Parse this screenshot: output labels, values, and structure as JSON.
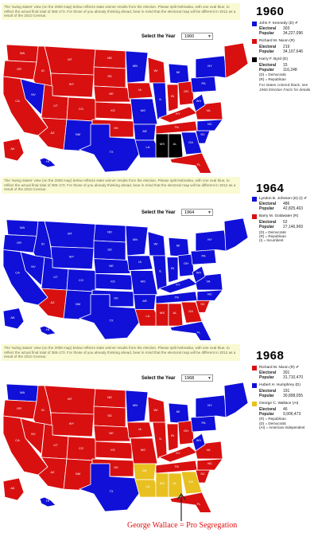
{
  "note_text": "The 'swing states' view (on the 2008 map) below reflects state winner results from the election. Please split Nebraska, with one oval blue, to reflect the actual final total of 365-173. For those of you already thinking ahead, bear in mind that the electoral map will be different in 2012 as a result of the 2010 Census.",
  "select_label": "Select the Year",
  "colors": {
    "dem": "#1010d8",
    "rep": "#d81010",
    "other": "#e8c020",
    "byrd": "#000000",
    "sea": "#ffffff"
  },
  "panels": [
    {
      "year": "1960",
      "select_value": "1960",
      "candidates": [
        {
          "name": "John F. Kennedy (D) ✔",
          "color": "#1010d8",
          "stats": [
            {
              "k": "Electoral",
              "v": "303"
            },
            {
              "k": "Popular",
              "v": "34,227,096"
            }
          ]
        },
        {
          "name": "Richard M. Nixon (R)",
          "color": "#d81010",
          "stats": [
            {
              "k": "Electoral",
              "v": "219"
            },
            {
              "k": "Popular",
              "v": "34,107,646"
            }
          ]
        },
        {
          "name": "Harry F. Byrd (D)",
          "color": "#000000",
          "stats": [
            {
              "k": "Electoral",
              "v": "15"
            },
            {
              "k": "Popular",
              "v": "116,248"
            }
          ]
        }
      ],
      "key": [
        "(D) = Democratic",
        "(R) = Republican"
      ],
      "footnote_pre": "For states colored black, see",
      "footnote_link": "1960 Election Facts",
      "footnote_post": "for details"
    },
    {
      "year": "1964",
      "select_value": "1964",
      "candidates": [
        {
          "name": "Lyndon B. Johnson (D) (I) ✔",
          "color": "#1010d8",
          "stats": [
            {
              "k": "Electoral",
              "v": "486"
            },
            {
              "k": "Popular",
              "v": "42,825,463"
            }
          ]
        },
        {
          "name": "Barry M. Goldwater (R)",
          "color": "#d81010",
          "stats": [
            {
              "k": "Electoral",
              "v": "52"
            },
            {
              "k": "Popular",
              "v": "27,146,969"
            }
          ]
        }
      ],
      "key": [
        "(D) = Democratic",
        "(R) = Republican",
        "(I) = Incumbent"
      ]
    },
    {
      "year": "1968",
      "select_value": "1968",
      "candidates": [
        {
          "name": "Richard M. Nixon (R) ✔",
          "color": "#d81010",
          "stats": [
            {
              "k": "Electoral",
              "v": "301"
            },
            {
              "k": "Popular",
              "v": "31,710,470"
            }
          ]
        },
        {
          "name": "Hubert H. Humphrey (D)",
          "color": "#1010d8",
          "stats": [
            {
              "k": "Electoral",
              "v": "191"
            },
            {
              "k": "Popular",
              "v": "30,898,055"
            }
          ]
        },
        {
          "name": "George C. Wallace (AI)",
          "color": "#e8c020",
          "stats": [
            {
              "k": "Electoral",
              "v": "46"
            },
            {
              "k": "Popular",
              "v": "9,906,473"
            }
          ]
        }
      ],
      "key": [
        "(R) = Republican",
        "(D) = Democratic",
        "(AI) = American Independent"
      ]
    }
  ],
  "caption": "George Wallace = Pro Segregation",
  "states": {
    "WA": "Washington",
    "OR": "Oregon",
    "CA": "California",
    "ID": "Idaho",
    "NV": "Nevada",
    "MT": "Montana",
    "WY": "Wyoming",
    "UT": "Utah",
    "AZ": "Arizona",
    "CO": "Colorado",
    "NM": "New Mexico",
    "ND": "North Dakota",
    "SD": "South Dakota",
    "NE": "Nebraska",
    "KS": "Kansas",
    "OK": "Oklahoma",
    "TX": "Texas",
    "MN": "Minnesota",
    "IA": "Iowa",
    "MO": "Missouri",
    "AR": "Arkansas",
    "LA": "Louisiana",
    "WI": "Wisconsin",
    "IL": "Illinois",
    "MI": "Michigan",
    "IN": "Indiana",
    "OH": "Ohio",
    "KY": "Kentucky",
    "TN": "Tennessee",
    "MS": "Mississippi",
    "AL": "Alabama",
    "GA": "Georgia",
    "FL": "Florida",
    "SC": "South Carolina",
    "NC": "North Carolina",
    "VA": "Virginia",
    "WV": "West Virginia",
    "PA": "Pennsylvania",
    "NY": "New York",
    "NE_REG": "New England",
    "AK": "Alaska",
    "HI": "Hawaii"
  },
  "results": [
    {
      "WA": "rep",
      "OR": "rep",
      "CA": "rep",
      "ID": "rep",
      "NV": "dem",
      "MT": "rep",
      "WY": "rep",
      "UT": "rep",
      "AZ": "rep",
      "CO": "rep",
      "NM": "dem",
      "ND": "rep",
      "SD": "rep",
      "NE": "rep",
      "KS": "rep",
      "OK": "rep",
      "TX": "dem",
      "MN": "dem",
      "IA": "rep",
      "MO": "dem",
      "AR": "dem",
      "LA": "dem",
      "WI": "rep",
      "IL": "dem",
      "MI": "dem",
      "IN": "rep",
      "OH": "rep",
      "KY": "rep",
      "TN": "rep",
      "MS": "byrd",
      "AL": "byrd",
      "GA": "dem",
      "FL": "rep",
      "SC": "dem",
      "NC": "dem",
      "VA": "rep",
      "WV": "dem",
      "PA": "dem",
      "NY": "dem",
      "NE_REG": "rep",
      "AK": "rep",
      "HI": "dem"
    },
    {
      "WA": "dem",
      "OR": "dem",
      "CA": "dem",
      "ID": "dem",
      "NV": "dem",
      "MT": "dem",
      "WY": "dem",
      "UT": "dem",
      "AZ": "rep",
      "CO": "dem",
      "NM": "dem",
      "ND": "dem",
      "SD": "dem",
      "NE": "dem",
      "KS": "dem",
      "OK": "dem",
      "TX": "dem",
      "MN": "dem",
      "IA": "dem",
      "MO": "dem",
      "AR": "dem",
      "LA": "rep",
      "WI": "dem",
      "IL": "dem",
      "MI": "dem",
      "IN": "dem",
      "OH": "dem",
      "KY": "dem",
      "TN": "dem",
      "MS": "rep",
      "AL": "rep",
      "GA": "rep",
      "FL": "dem",
      "SC": "rep",
      "NC": "dem",
      "VA": "dem",
      "WV": "dem",
      "PA": "dem",
      "NY": "dem",
      "NE_REG": "dem",
      "AK": "dem",
      "HI": "dem"
    },
    {
      "WA": "dem",
      "OR": "rep",
      "CA": "rep",
      "ID": "rep",
      "NV": "rep",
      "MT": "rep",
      "WY": "rep",
      "UT": "rep",
      "AZ": "rep",
      "CO": "rep",
      "NM": "rep",
      "ND": "rep",
      "SD": "rep",
      "NE": "rep",
      "KS": "rep",
      "OK": "rep",
      "TX": "dem",
      "MN": "dem",
      "IA": "rep",
      "MO": "rep",
      "AR": "other",
      "LA": "other",
      "WI": "rep",
      "IL": "rep",
      "MI": "dem",
      "IN": "rep",
      "OH": "rep",
      "KY": "rep",
      "TN": "rep",
      "MS": "other",
      "AL": "other",
      "GA": "other",
      "FL": "rep",
      "SC": "rep",
      "NC": "rep",
      "VA": "rep",
      "WV": "dem",
      "PA": "dem",
      "NY": "dem",
      "NE_REG": "dem",
      "AK": "rep",
      "HI": "dem"
    }
  ]
}
